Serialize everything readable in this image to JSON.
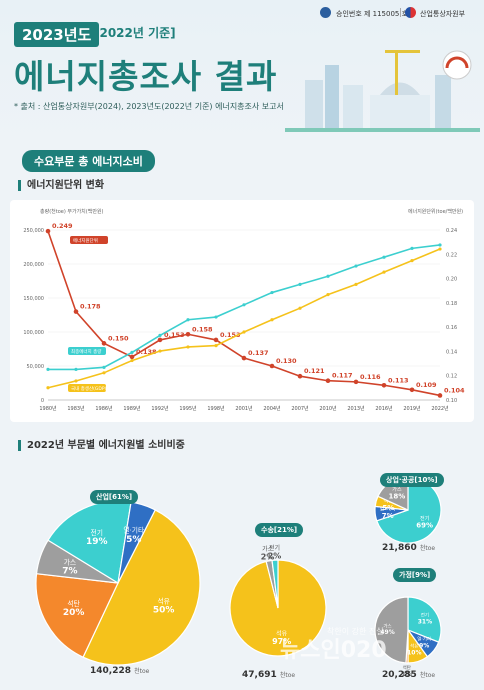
{
  "header": {
    "approval": "승인번호 제 115005 호",
    "ministry": "산업통상자원부",
    "year_badge": "2023년도",
    "base_badge": "[2022년 기준]",
    "title": "에너지총조사 결과",
    "source": "* 출처 : 산업통상자원부(2024), 2023년도(2022년 기준) 에너지총조사 보고서"
  },
  "section": {
    "title": "수요부문 총 에너지소비",
    "sub1": "에너지원단위 변화",
    "sub2": "2022년 부문별 에너지원별 소비비중"
  },
  "chart_data": [
    {
      "type": "line",
      "left_axis_label": "총량(천toe) 부가가치(백만원)",
      "right_axis_label": "에너지원단위(toe/백만원)",
      "x": [
        "1980년",
        "1983년",
        "1986년",
        "1989년",
        "1992년",
        "1995년",
        "1998년",
        "2001년",
        "2004년",
        "2007년",
        "2010년",
        "2013년",
        "2016년",
        "2019년",
        "2022년"
      ],
      "left_ticks": [
        "250,000",
        "200,000",
        "150,000",
        "100,000",
        "50,000",
        "0"
      ],
      "right_ticks": [
        "0.24",
        "0.22",
        "0.20",
        "0.18",
        "0.16",
        "0.14",
        "0.12",
        "0.10"
      ],
      "ylim_left": [
        0,
        250000
      ],
      "ylim_right": [
        0.1,
        0.25
      ],
      "series": [
        {
          "name": "에너지원단위",
          "axis": "right",
          "color": "#d0432a",
          "values": [
            0.249,
            0.178,
            0.15,
            0.138,
            0.153,
            0.158,
            0.153,
            0.137,
            0.13,
            0.121,
            0.117,
            0.116,
            0.113,
            0.109,
            0.104
          ],
          "labels": [
            "0.249",
            "0.178",
            "0.150",
            "0.138",
            "0.153",
            "0.158",
            "0.153",
            "0.137",
            "0.130",
            "0.121",
            "0.117",
            "0.116",
            "0.113",
            "0.109",
            "0.104"
          ]
        },
        {
          "name": "최종에너지 총량",
          "axis": "left",
          "color": "#3ccfcf",
          "values": [
            45000,
            45000,
            48000,
            70000,
            95000,
            118000,
            122000,
            140000,
            158000,
            170000,
            182000,
            197000,
            210000,
            223000,
            228000
          ]
        },
        {
          "name": "국내 총생산(GDP)",
          "axis": "left",
          "color": "#f5c21b",
          "values": [
            18000,
            28000,
            40000,
            58000,
            72000,
            78000,
            80000,
            100000,
            118000,
            135000,
            155000,
            170000,
            188000,
            205000,
            222000
          ]
        }
      ]
    },
    {
      "type": "pie",
      "name": "산업[61%]",
      "total": "140,228",
      "unit": "천toe",
      "slices": [
        {
          "label": "석유",
          "value": 50,
          "text": "50%",
          "color": "#f5c21b"
        },
        {
          "label": "석탄",
          "value": 20,
          "text": "20%",
          "color": "#f4882c"
        },
        {
          "label": "가스",
          "value": 7,
          "text": "7%",
          "color": "#9e9e9e"
        },
        {
          "label": "전기",
          "value": 19,
          "text": "19%",
          "color": "#3ccfcf"
        },
        {
          "label": "열·기타",
          "value": 5,
          "text": "5%",
          "color": "#2f6fc4"
        }
      ]
    },
    {
      "type": "pie",
      "name": "수송[21%]",
      "total": "47,691",
      "unit": "천toe",
      "slices": [
        {
          "label": "석유",
          "value": 97,
          "text": "97%",
          "color": "#f5c21b"
        },
        {
          "label": "가스",
          "value": 2,
          "text": "2%",
          "color": "#9e9e9e"
        },
        {
          "label": "전기",
          "value": 2,
          "text": "2%",
          "color": "#3ccfcf"
        }
      ]
    },
    {
      "type": "pie",
      "name": "상업·공공[10%]",
      "total": "21,860",
      "unit": "천toe",
      "slices": [
        {
          "label": "전기",
          "value": 69,
          "text": "69%",
          "color": "#3ccfcf"
        },
        {
          "label": "열·기타",
          "value": 7,
          "text": "7%",
          "color": "#2f6fc4"
        },
        {
          "label": "석유",
          "value": 5,
          "text": "5%",
          "color": "#f5c21b"
        },
        {
          "label": "가스",
          "value": 18,
          "text": "18%",
          "color": "#9e9e9e"
        }
      ]
    },
    {
      "type": "pie",
      "name": "가정[9%]",
      "total": "20,285",
      "unit": "천toe",
      "slices": [
        {
          "label": "전기",
          "value": 31,
          "text": "31%",
          "color": "#3ccfcf"
        },
        {
          "label": "열·기타",
          "value": 9,
          "text": "9%",
          "color": "#2f6fc4"
        },
        {
          "label": "석유",
          "value": 10,
          "text": "10%",
          "color": "#f5c21b"
        },
        {
          "label": "석탄",
          "value": 1,
          "text": "1%",
          "color": "#f4882c"
        },
        {
          "label": "가스",
          "value": 49,
          "text": "49%",
          "color": "#9e9e9e"
        }
      ]
    }
  ],
  "watermark": {
    "brand": "뉴스인020",
    "slogan": "착한이 강한 진실"
  }
}
